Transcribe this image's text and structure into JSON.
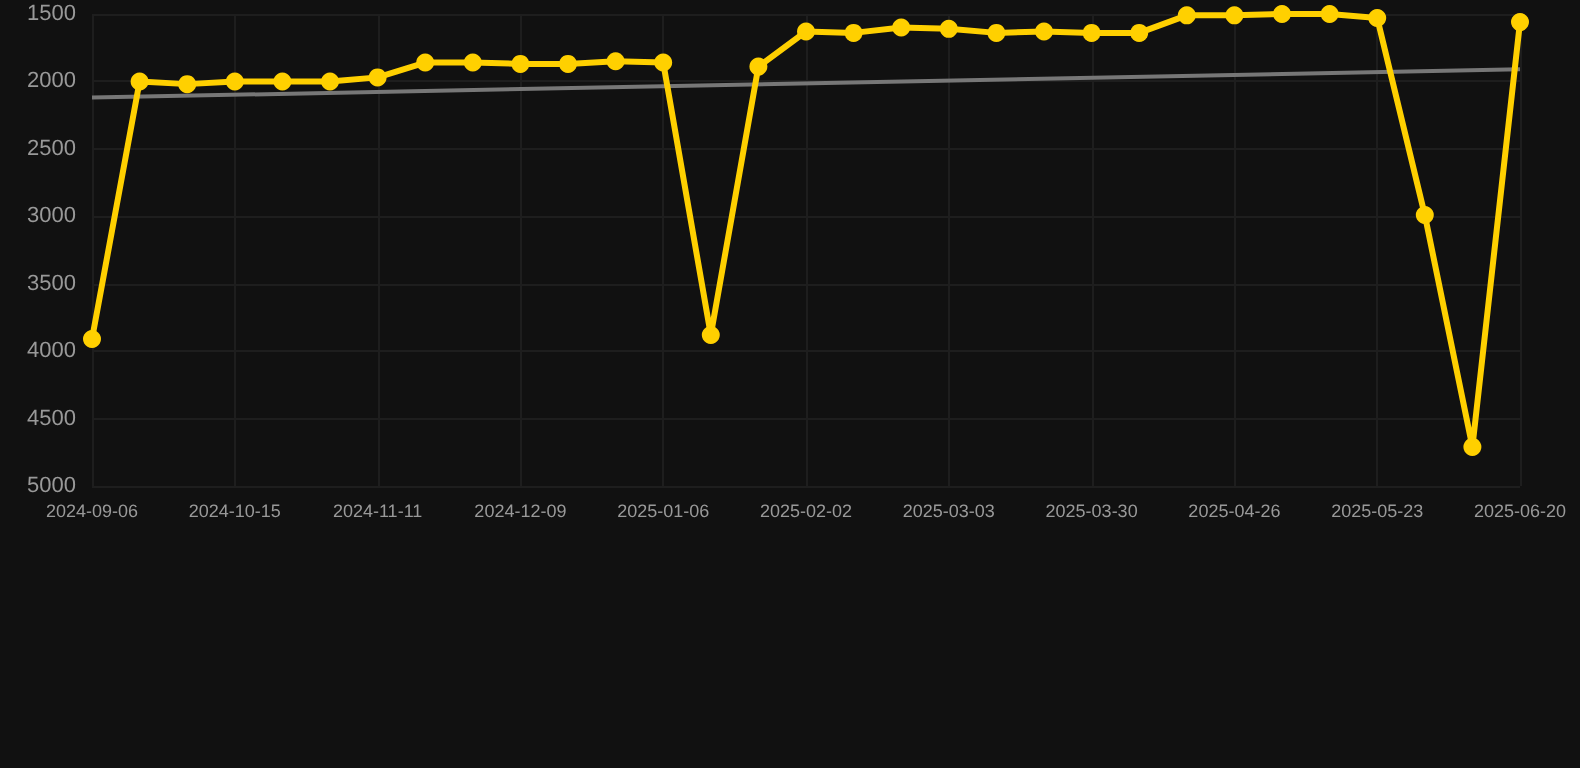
{
  "chart_data": {
    "type": "line",
    "categories": [
      "2024-09-06",
      null,
      null,
      "2024-10-15",
      null,
      null,
      "2024-11-11",
      null,
      null,
      "2024-12-09",
      null,
      null,
      "2025-01-06",
      null,
      null,
      "2025-02-02",
      null,
      null,
      "2025-03-03",
      null,
      null,
      "2025-03-30",
      null,
      null,
      "2025-04-26",
      null,
      null,
      "2025-05-23",
      null,
      null,
      "2025-06-20"
    ],
    "series": [
      {
        "color": "#ffd000",
        "marker": "circle",
        "values": [
          3910,
          2000,
          2020,
          2000,
          2000,
          2000,
          1970,
          1860,
          1860,
          1870,
          1870,
          1850,
          1860,
          3880,
          1890,
          1630,
          1640,
          1600,
          1610,
          1640,
          1630,
          1640,
          1640,
          1510,
          1510,
          1500,
          1500,
          1530,
          2990,
          4710,
          1560
        ]
      },
      {
        "color": "#777777",
        "marker": "none",
        "values": [
          2120,
          null,
          null,
          null,
          null,
          null,
          null,
          null,
          null,
          null,
          null,
          null,
          null,
          null,
          null,
          null,
          null,
          null,
          null,
          null,
          null,
          null,
          null,
          null,
          null,
          null,
          null,
          null,
          null,
          null,
          1910
        ]
      }
    ],
    "ylim": [
      5000,
      1500
    ],
    "yticks": [
      1500,
      2000,
      2500,
      3000,
      3500,
      4000,
      4500,
      5000
    ],
    "grid": true
  }
}
